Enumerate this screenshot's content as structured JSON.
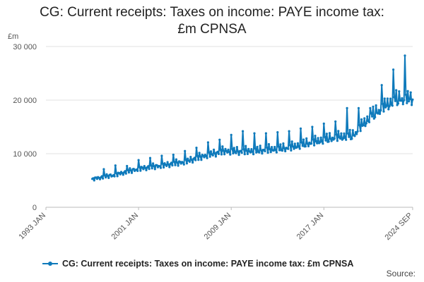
{
  "chart_data": {
    "type": "line",
    "title_lines": [
      "CG: Current receipts: Taxes on income: PAYE income tax:",
      "£m CPNSA"
    ],
    "unit_label": "£m",
    "ylim": [
      0,
      30000
    ],
    "y_ticks": [
      0,
      10000,
      20000,
      30000
    ],
    "y_tick_labels": [
      "0",
      "10 000",
      "20 000",
      "30 000"
    ],
    "x_ticks": [
      "1993 JAN",
      "2001 JAN",
      "2009 JAN",
      "2017 JAN",
      "2024 SEP"
    ],
    "x_range": [
      "1993 JAN",
      "2024 SEP"
    ],
    "grid": true,
    "legend_position": "bottom",
    "series": [
      {
        "name": "CG: Current receipts: Taxes on income: PAYE income tax: £m CPNSA",
        "color": "#0f7abb",
        "baseline": [
          [
            1997.0,
            5200
          ],
          [
            1999.0,
            6000
          ],
          [
            2001.0,
            7100
          ],
          [
            2003.0,
            7700
          ],
          [
            2005.0,
            8400
          ],
          [
            2007.0,
            9700
          ],
          [
            2008.5,
            10400
          ],
          [
            2010.0,
            10300
          ],
          [
            2012.0,
            10600
          ],
          [
            2014.0,
            11000
          ],
          [
            2016.0,
            12000
          ],
          [
            2018.0,
            12900
          ],
          [
            2019.5,
            13200
          ],
          [
            2020.5,
            15600
          ],
          [
            2021.5,
            17500
          ],
          [
            2022.5,
            19000
          ],
          [
            2023.5,
            20000
          ],
          [
            2024.67,
            20000
          ]
        ],
        "january_peaks": [
          [
            1998,
            7100
          ],
          [
            1999,
            7800
          ],
          [
            2000,
            7700
          ],
          [
            2001,
            8800
          ],
          [
            2002,
            9200
          ],
          [
            2003,
            9600
          ],
          [
            2004,
            9800
          ],
          [
            2005,
            10500
          ],
          [
            2006,
            11100
          ],
          [
            2007,
            12100
          ],
          [
            2008,
            12600
          ],
          [
            2009,
            13500
          ],
          [
            2010,
            14200
          ],
          [
            2011,
            13800
          ],
          [
            2012,
            13800
          ],
          [
            2013,
            14000
          ],
          [
            2014,
            14200
          ],
          [
            2015,
            14700
          ],
          [
            2016,
            15000
          ],
          [
            2017,
            15600
          ],
          [
            2018,
            16000
          ],
          [
            2019,
            18500
          ],
          [
            2020,
            18500
          ],
          [
            2021,
            18500
          ],
          [
            2022,
            22800
          ],
          [
            2023,
            25700
          ],
          [
            2024,
            28300
          ]
        ],
        "end_value": [
          2024.67,
          20100
        ]
      }
    ]
  },
  "legend": {
    "label": "CG: Current receipts: Taxes on income: PAYE income tax: £m CPNSA"
  },
  "footer": {
    "source_label": "Source:"
  }
}
